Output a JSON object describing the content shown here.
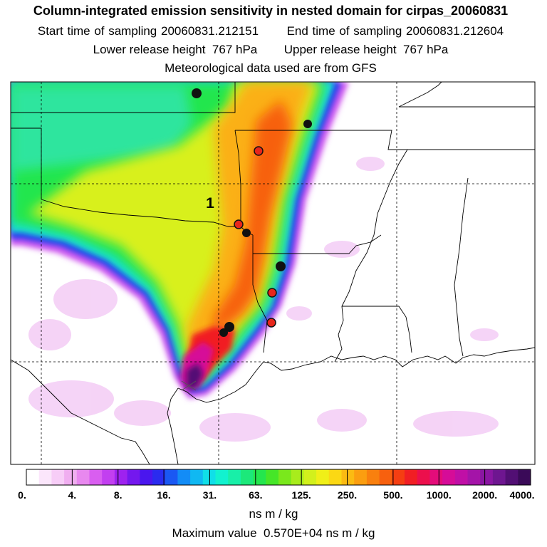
{
  "header": {
    "title": "Column-integrated emission sensitivity in nested domain for cirpas_20060831",
    "start_label": "Start time of sampling",
    "start_value": "20060831.212151",
    "end_label": "End time of sampling",
    "end_value": "20060831.212604",
    "lower_label": "Lower release height",
    "lower_value": "767 hPa",
    "upper_label": "Upper release height",
    "upper_value": "767 hPa",
    "met_text": "Meteorological data used are from GFS"
  },
  "map": {
    "release_number_label": "1",
    "marker_colors": {
      "black": "#111111",
      "red": "#e8261c"
    },
    "black_markers_count": 6,
    "red_markers_count": 4
  },
  "colorbar": {
    "tick_labels": [
      "0.",
      "4.",
      "8.",
      "16.",
      "31.",
      "63.",
      "125.",
      "250.",
      "500.",
      "1000.",
      "2000.",
      "4000."
    ],
    "colors": [
      "#ffffff",
      "#fbe6fb",
      "#f7cdf7",
      "#f0aef0",
      "#e888ef",
      "#d95ef0",
      "#c23ff0",
      "#9e22ef",
      "#7418ee",
      "#4a16ee",
      "#2a2bef",
      "#1a58f3",
      "#138cf6",
      "#10b8f2",
      "#10dfe8",
      "#12f2cf",
      "#18efa8",
      "#1ce87a",
      "#24e64e",
      "#46e628",
      "#7ae81c",
      "#a8ec1c",
      "#d2f01c",
      "#f0ef18",
      "#fbd814",
      "#fbbb12",
      "#fb9e10",
      "#f9800e",
      "#f7600e",
      "#f53e12",
      "#f11e24",
      "#ec0f4c",
      "#e40c7a",
      "#d60c98",
      "#c00fa6",
      "#a414a8",
      "#8a16a2",
      "#6e1690",
      "#520f74",
      "#3a0a58"
    ],
    "units": "ns m / kg"
  },
  "footer": {
    "max_label": "Maximum value",
    "max_value": "0.570E+04 ns m / kg"
  }
}
